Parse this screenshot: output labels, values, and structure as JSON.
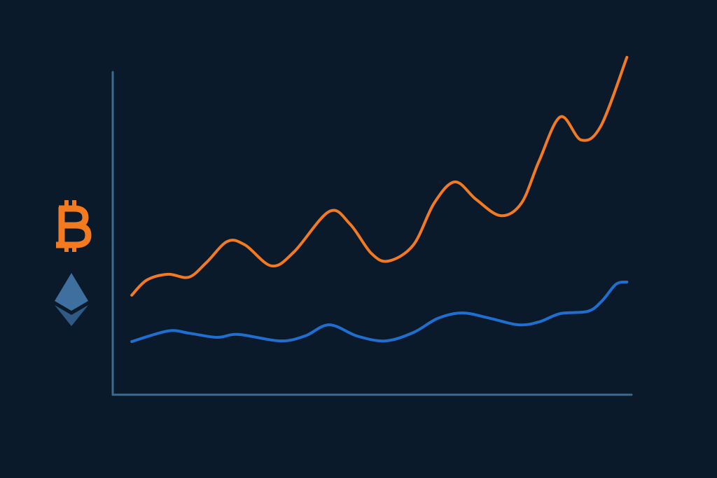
{
  "chart_data": {
    "type": "line",
    "xlim": [
      0,
      100
    ],
    "ylim": [
      0,
      110
    ],
    "series": [
      {
        "color": "#f47a20",
        "x": [
          3.8,
          6.7,
          10.8,
          14.8,
          18.2,
          22.2,
          25.6,
          30.7,
          35.0,
          41.8,
          45.8,
          49.9,
          53.2,
          58.0,
          62.0,
          66.0,
          70.1,
          74.8,
          78.8,
          82.2,
          86.3,
          90.3,
          94.1,
          99.1
        ],
        "values": [
          30.7,
          35.4,
          37.2,
          36.3,
          40.9,
          47.4,
          46.3,
          39.8,
          44.1,
          56.7,
          52.8,
          43.7,
          41.3,
          46.3,
          59.3,
          65.9,
          60.4,
          55.4,
          59.3,
          72.4,
          86.1,
          78.9,
          83.3,
          104.6
        ]
      },
      {
        "color": "#1f6fd1",
        "x": [
          3.8,
          10.8,
          14.8,
          20.2,
          24.3,
          32.3,
          37.1,
          41.8,
          47.2,
          52.6,
          58.0,
          62.7,
          67.4,
          72.8,
          78.2,
          82.2,
          86.3,
          91.6,
          94.3,
          97.0,
          99.1
        ],
        "values": [
          16.3,
          19.6,
          18.9,
          17.6,
          18.5,
          16.5,
          18.0,
          21.5,
          18.0,
          16.5,
          19.1,
          23.5,
          25.2,
          23.5,
          21.5,
          22.4,
          25.0,
          25.7,
          28.9,
          34.1,
          34.8
        ]
      }
    ]
  }
}
